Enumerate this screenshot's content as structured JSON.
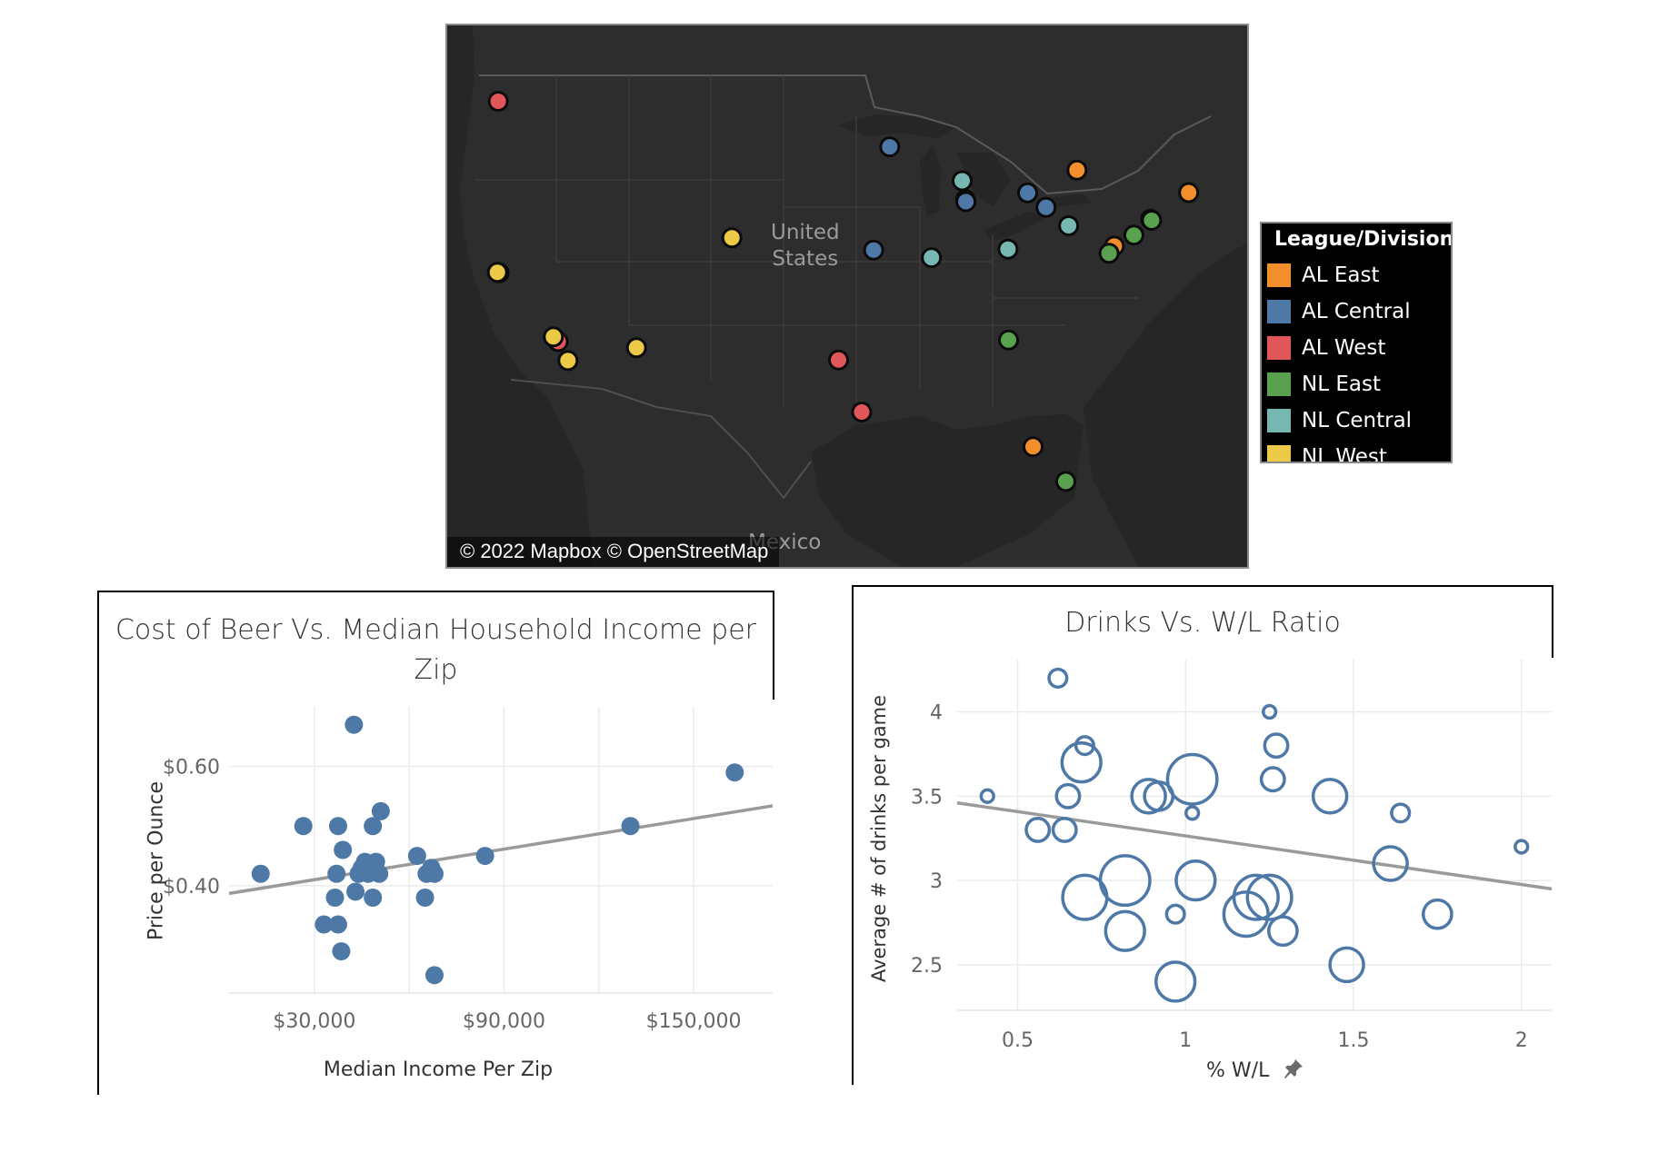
{
  "map": {
    "attribution": "© 2022 Mapbox © OpenStreetMap",
    "labels": {
      "us_line1": "United",
      "us_line2": "States",
      "mexico": "Mexico"
    },
    "colors": {
      "background": "#2b2b2b",
      "land": "#333333",
      "water": "#262626",
      "border": "#4a4a4a"
    },
    "teams": [
      {
        "division": "AL West",
        "lon": -122.33,
        "lat": 47.59
      },
      {
        "division": "AL West",
        "lon": -122.27,
        "lat": 37.75
      },
      {
        "division": "NL West",
        "lon": -122.39,
        "lat": 37.78
      },
      {
        "division": "AL West",
        "lon": -117.88,
        "lat": 33.8
      },
      {
        "division": "NL West",
        "lon": -118.24,
        "lat": 34.07
      },
      {
        "division": "NL West",
        "lon": -117.16,
        "lat": 32.71
      },
      {
        "division": "NL West",
        "lon": -112.07,
        "lat": 33.45
      },
      {
        "division": "NL West",
        "lon": -104.99,
        "lat": 39.76
      },
      {
        "division": "AL West",
        "lon": -97.08,
        "lat": 32.75
      },
      {
        "division": "AL West",
        "lon": -95.36,
        "lat": 29.76
      },
      {
        "division": "AL Central",
        "lon": -93.28,
        "lat": 44.98
      },
      {
        "division": "AL Central",
        "lon": -94.48,
        "lat": 39.05
      },
      {
        "division": "NL Central",
        "lon": -87.91,
        "lat": 43.03
      },
      {
        "division": "NL Central",
        "lon": -87.66,
        "lat": 41.95
      },
      {
        "division": "AL Central",
        "lon": -87.63,
        "lat": 41.83
      },
      {
        "division": "NL Central",
        "lon": -90.19,
        "lat": 38.62
      },
      {
        "division": "AL Central",
        "lon": -83.05,
        "lat": 42.34
      },
      {
        "division": "AL Central",
        "lon": -81.69,
        "lat": 41.5
      },
      {
        "division": "NL Central",
        "lon": -80.01,
        "lat": 40.45
      },
      {
        "division": "NL Central",
        "lon": -84.51,
        "lat": 39.1
      },
      {
        "division": "NL East",
        "lon": -84.47,
        "lat": 33.89
      },
      {
        "division": "AL East",
        "lon": -79.39,
        "lat": 43.64
      },
      {
        "division": "AL East",
        "lon": -71.1,
        "lat": 42.35
      },
      {
        "division": "AL East",
        "lon": -73.93,
        "lat": 40.83
      },
      {
        "division": "NL East",
        "lon": -73.85,
        "lat": 40.76
      },
      {
        "division": "NL East",
        "lon": -75.17,
        "lat": 39.91
      },
      {
        "division": "AL East",
        "lon": -76.62,
        "lat": 39.28
      },
      {
        "division": "NL East",
        "lon": -77.01,
        "lat": 38.87
      },
      {
        "division": "AL East",
        "lon": -82.65,
        "lat": 27.77
      },
      {
        "division": "NL East",
        "lon": -80.22,
        "lat": 25.78
      }
    ]
  },
  "legend": {
    "title": "League/Division",
    "items": [
      {
        "label": "AL East",
        "color": "#f28e2b"
      },
      {
        "label": "AL Central",
        "color": "#4e79a7"
      },
      {
        "label": "AL West",
        "color": "#e15759"
      },
      {
        "label": "NL East",
        "color": "#59a14f"
      },
      {
        "label": "NL Central",
        "color": "#76b7b2"
      },
      {
        "label": "NL West",
        "color": "#edc948"
      }
    ]
  },
  "chart_data": [
    {
      "type": "scatter",
      "title": "Cost of Beer Vs. Median Household Income per Zip",
      "xlabel": "Median Income Per Zip",
      "ylabel": "Price per Ounce",
      "xlim": [
        3000,
        175000
      ],
      "ylim": [
        0.22,
        0.7
      ],
      "x_ticks": [
        {
          "value": 30000,
          "label": "$30,000"
        },
        {
          "value": 90000,
          "label": "$90,000"
        },
        {
          "value": 150000,
          "label": "$150,000"
        }
      ],
      "x_grid": [
        60000,
        120000
      ],
      "y_ticks": [
        {
          "value": 0.6,
          "label": "$0.60"
        },
        {
          "value": 0.4,
          "label": "$0.40"
        }
      ],
      "grid": true,
      "color": "#4e79a7",
      "trend_line": {
        "x": [
          3000,
          175000
        ],
        "y": [
          0.387,
          0.534
        ],
        "color": "#9a9a9a"
      },
      "points": [
        {
          "x": 13000,
          "y": 0.42
        },
        {
          "x": 26500,
          "y": 0.5
        },
        {
          "x": 33000,
          "y": 0.335
        },
        {
          "x": 36500,
          "y": 0.38
        },
        {
          "x": 37000,
          "y": 0.42
        },
        {
          "x": 37500,
          "y": 0.335
        },
        {
          "x": 37500,
          "y": 0.5
        },
        {
          "x": 38500,
          "y": 0.29
        },
        {
          "x": 39000,
          "y": 0.46
        },
        {
          "x": 42500,
          "y": 0.67
        },
        {
          "x": 43000,
          "y": 0.39
        },
        {
          "x": 44000,
          "y": 0.42
        },
        {
          "x": 45000,
          "y": 0.43
        },
        {
          "x": 46000,
          "y": 0.44
        },
        {
          "x": 47000,
          "y": 0.42
        },
        {
          "x": 48000,
          "y": 0.43
        },
        {
          "x": 48500,
          "y": 0.38
        },
        {
          "x": 48500,
          "y": 0.5
        },
        {
          "x": 49500,
          "y": 0.44
        },
        {
          "x": 50500,
          "y": 0.42
        },
        {
          "x": 51000,
          "y": 0.525
        },
        {
          "x": 62500,
          "y": 0.45
        },
        {
          "x": 65000,
          "y": 0.38
        },
        {
          "x": 65500,
          "y": 0.42
        },
        {
          "x": 67000,
          "y": 0.43
        },
        {
          "x": 68000,
          "y": 0.42
        },
        {
          "x": 68000,
          "y": 0.25
        },
        {
          "x": 84000,
          "y": 0.45
        },
        {
          "x": 130000,
          "y": 0.5
        },
        {
          "x": 163000,
          "y": 0.59
        }
      ]
    },
    {
      "type": "scatter",
      "title": "Drinks Vs. W/L Ratio",
      "xlabel": "% W/L",
      "ylabel": "Average # of drinks per game",
      "xlim": [
        0.32,
        2.09
      ],
      "ylim": [
        2.23,
        4.31
      ],
      "x_ticks": [
        {
          "value": 0.5,
          "label": "0.5"
        },
        {
          "value": 1,
          "label": "1"
        },
        {
          "value": 1.5,
          "label": "1.5"
        },
        {
          "value": 2,
          "label": "2"
        }
      ],
      "y_ticks": [
        {
          "value": 2.5,
          "label": "2.5"
        },
        {
          "value": 3,
          "label": "3"
        },
        {
          "value": 3.5,
          "label": "3.5"
        },
        {
          "value": 4,
          "label": "4"
        }
      ],
      "grid": true,
      "color": "#4e79a7",
      "marker": "hollow-circle",
      "trend_line": {
        "x": [
          0.32,
          2.09
        ],
        "y": [
          3.46,
          2.95
        ],
        "color": "#9a9a9a"
      },
      "points": [
        {
          "x": 0.41,
          "y": 3.5,
          "size": 1
        },
        {
          "x": 0.56,
          "y": 3.3,
          "size": 3
        },
        {
          "x": 0.62,
          "y": 4.2,
          "size": 2
        },
        {
          "x": 0.64,
          "y": 3.3,
          "size": 3
        },
        {
          "x": 0.65,
          "y": 3.5,
          "size": 3
        },
        {
          "x": 0.7,
          "y": 3.8,
          "size": 2
        },
        {
          "x": 0.69,
          "y": 3.7,
          "size": 6
        },
        {
          "x": 0.7,
          "y": 2.9,
          "size": 7
        },
        {
          "x": 0.82,
          "y": 2.7,
          "size": 6
        },
        {
          "x": 0.82,
          "y": 3.0,
          "size": 8
        },
        {
          "x": 0.89,
          "y": 3.5,
          "size": 5
        },
        {
          "x": 0.92,
          "y": 3.5,
          "size": 4
        },
        {
          "x": 0.97,
          "y": 2.8,
          "size": 2
        },
        {
          "x": 0.97,
          "y": 2.4,
          "size": 6
        },
        {
          "x": 1.02,
          "y": 3.4,
          "size": 1
        },
        {
          "x": 1.02,
          "y": 3.6,
          "size": 8
        },
        {
          "x": 1.03,
          "y": 3.0,
          "size": 6
        },
        {
          "x": 1.18,
          "y": 2.8,
          "size": 7
        },
        {
          "x": 1.21,
          "y": 2.9,
          "size": 7
        },
        {
          "x": 1.25,
          "y": 2.9,
          "size": 7
        },
        {
          "x": 1.25,
          "y": 4.0,
          "size": 1
        },
        {
          "x": 1.26,
          "y": 3.6,
          "size": 3
        },
        {
          "x": 1.27,
          "y": 3.8,
          "size": 3
        },
        {
          "x": 1.29,
          "y": 2.7,
          "size": 4
        },
        {
          "x": 1.43,
          "y": 3.5,
          "size": 5
        },
        {
          "x": 1.48,
          "y": 2.5,
          "size": 5
        },
        {
          "x": 1.61,
          "y": 3.1,
          "size": 5
        },
        {
          "x": 1.64,
          "y": 3.4,
          "size": 2
        },
        {
          "x": 1.75,
          "y": 2.8,
          "size": 4
        },
        {
          "x": 2.0,
          "y": 3.2,
          "size": 1
        }
      ]
    }
  ]
}
